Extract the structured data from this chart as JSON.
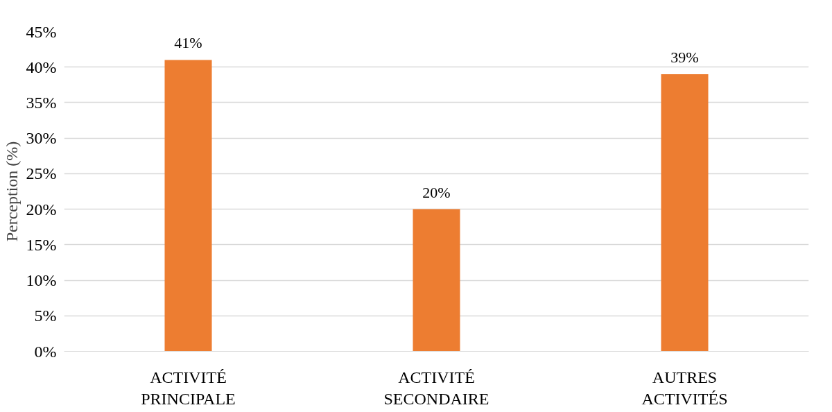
{
  "chart_data": {
    "type": "bar",
    "ylabel": "Perception (%)",
    "categories": [
      "ACTIVITÉ\nPRINCIPALE",
      "ACTIVITÉ\nSECONDAIRE",
      "AUTRES\nACTIVITÉS"
    ],
    "values": [
      41,
      20,
      39
    ],
    "color": "#ed7d31",
    "value_labels": [
      "41%",
      "20%",
      "39%"
    ],
    "ylim": [
      0,
      45
    ],
    "yticks": [
      {
        "value": 0,
        "label": "0%"
      },
      {
        "value": 5,
        "label": "5%"
      },
      {
        "value": 10,
        "label": "10%"
      },
      {
        "value": 15,
        "label": "15%"
      },
      {
        "value": 20,
        "label": "20%"
      },
      {
        "value": 25,
        "label": "25%"
      },
      {
        "value": 30,
        "label": "30%"
      },
      {
        "value": 35,
        "label": "35%"
      },
      {
        "value": 40,
        "label": "40%"
      },
      {
        "value": 45,
        "label": "45%"
      }
    ],
    "grid": "y"
  }
}
